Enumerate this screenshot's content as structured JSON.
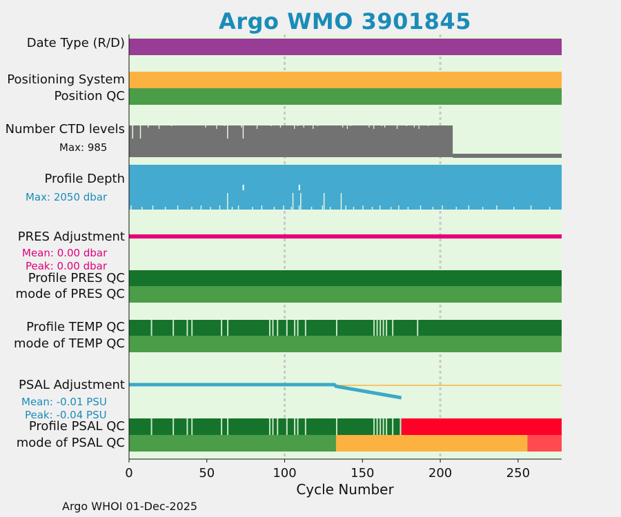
{
  "title": "Argo WMO 3901845",
  "footer": "Argo WHOI 01-Dec-2025",
  "colors": {
    "background": "#e5f7e0",
    "data_type": "#983c96",
    "positioning": "#fbb241",
    "good_qc": "#4b9d47",
    "dark_qc": "#16732b",
    "ctd": "#727272",
    "depth": "#44aad0",
    "pres_adj": "#e8007a",
    "psal_adj": "#3ca9c8",
    "psal_adj_line": "#fbb241",
    "bad_qc": "#ff0028",
    "bad_mode": "#ff4a50"
  },
  "rows": {
    "data_type": "Date Type (R/D)",
    "positioning_system": "Positioning System",
    "position_qc": "Position QC",
    "ctd_levels": "Number CTD levels",
    "ctd_max": "Max: 985",
    "profile_depth": "Profile Depth",
    "depth_max": "Max: 2050 dbar",
    "pres_adjustment": "PRES Adjustment",
    "pres_mean": "Mean: 0.00 dbar",
    "pres_peak": "Peak: 0.00 dbar",
    "profile_pres_qc": "Profile PRES QC",
    "mode_pres_qc": "mode of PRES QC",
    "profile_temp_qc": "Profile TEMP QC",
    "mode_temp_qc": "mode of TEMP QC",
    "psal_adjustment": "PSAL Adjustment",
    "psal_mean": "Mean: -0.01 PSU",
    "psal_peak": "Peak: -0.04 PSU",
    "profile_psal_qc": "Profile PSAL QC",
    "mode_psal_qc": "mode of PSAL QC"
  },
  "chart_data": {
    "type": "bar",
    "title": "Argo WMO 3901845",
    "xlabel": "Cycle Number",
    "xlim": [
      0,
      278
    ],
    "xticks": [
      0,
      50,
      100,
      150,
      200,
      250
    ],
    "grid_x": [
      100,
      200
    ],
    "ctd_levels": {
      "max": 985,
      "last_cycle": 208,
      "after_last": 0
    },
    "profile_depth": {
      "max_dbar": 2050
    },
    "pres_adjustment": {
      "mean_dbar": 0.0,
      "peak_dbar": 0.0
    },
    "temp_qc_gaps": [
      14,
      28,
      37,
      40,
      59,
      63,
      90,
      92,
      95,
      101,
      106,
      108,
      113,
      133,
      157,
      159,
      161,
      163,
      165,
      169,
      185
    ],
    "psal_qc_gaps": [
      14,
      28,
      37,
      40,
      59,
      63,
      90,
      92,
      95,
      101,
      106,
      108,
      113,
      133,
      157,
      159,
      161,
      163,
      165,
      169,
      174
    ],
    "psal_profile_qc_bad_from": 175,
    "psal_mode_qc": [
      {
        "from": 0,
        "to": 133,
        "qc": "good"
      },
      {
        "from": 133,
        "to": 256,
        "qc": "probably_bad"
      },
      {
        "from": 256,
        "to": 278,
        "qc": "bad"
      }
    ],
    "psal_adjustment": {
      "mean_psu": -0.01,
      "peak_psu": -0.04,
      "points": [
        [
          0,
          0.0
        ],
        [
          132,
          0.0
        ],
        [
          133,
          -0.005
        ],
        [
          175,
          -0.04
        ]
      ]
    }
  }
}
